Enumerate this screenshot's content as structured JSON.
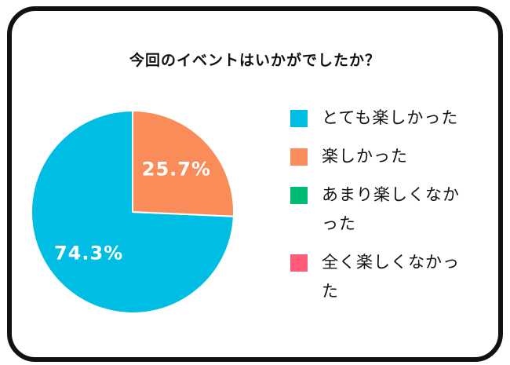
{
  "chart_data": {
    "type": "pie",
    "title": "今回のイベントはいかがでしたか？",
    "categories": [
      "とても楽しかった",
      "楽しかった",
      "あまり楽しくなかった",
      "全く楽しくなかった"
    ],
    "values": [
      74.3,
      25.7,
      0,
      0
    ],
    "labels": [
      "74.3%",
      "25.7%",
      "",
      ""
    ],
    "colors": [
      "#00BDE3",
      "#FA8C5A",
      "#00BC70",
      "#FF5A78"
    ],
    "legend_position": "right"
  }
}
